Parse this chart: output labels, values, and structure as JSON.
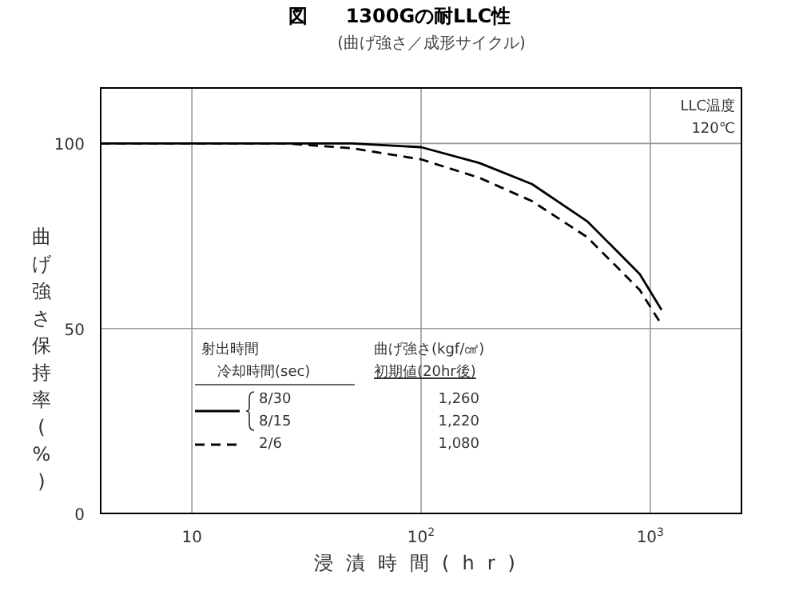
{
  "chart_data": {
    "type": "line",
    "title": "図　　1300Gの耐LLC性",
    "subtitle": "(曲げ強さ／成形サイクル)",
    "xlabel": "浸漬時間(hr)",
    "ylabel": "曲げ強さ保持率(%)",
    "x": [
      4,
      26,
      50,
      100,
      180,
      305,
      530,
      900,
      1120
    ],
    "series": [
      {
        "color": "#000000",
        "line_style": "solid",
        "values": [
          100,
          100,
          100,
          99,
          94.7,
          89,
          79,
          64.7,
          55
        ]
      },
      {
        "name": "2/6",
        "color": "#000000",
        "line_style": "dashed",
        "values": [
          100,
          100,
          98.7,
          95.7,
          90.7,
          84.4,
          74.7,
          60.4,
          51
        ]
      }
    ],
    "log": "x",
    "xlim": [
      4,
      2500
    ],
    "xticks": [
      10,
      {
        "value": 100,
        "label": "10$^{2}$"
      },
      {
        "value": 1000,
        "label": "10$^{3}$"
      }
    ],
    "ylim": [
      0,
      115
    ],
    "yticks": [
      0,
      50,
      100
    ],
    "grid": true,
    "marker": "none",
    "legend": "bottom left",
    "annotations": [
      "射出時間",
      "冷却時間(sec)",
      "曲げ強さ(kgf/㎠)",
      "初期値(20hr後)",
      "8/30",
      "8/15",
      "1,260",
      "1,220",
      "1,080",
      "LLC温度",
      "120℃"
    ]
  }
}
